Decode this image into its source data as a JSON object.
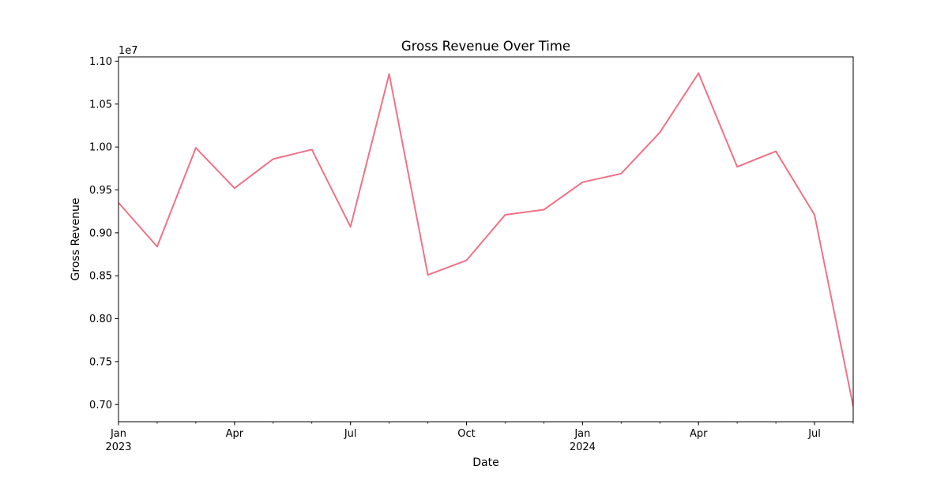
{
  "chart_data": {
    "type": "line",
    "title": "Gross Revenue Over Time",
    "xlabel": "Date",
    "ylabel": "Gross Revenue",
    "y_offset_label": "1e7",
    "ylim": [
      6.8,
      11.05
    ],
    "y_ticks": [
      0.7,
      0.75,
      0.8,
      0.85,
      0.9,
      0.95,
      1.0,
      1.05,
      1.1
    ],
    "y_tick_labels": [
      "0.70",
      "0.75",
      "0.80",
      "0.85",
      "0.90",
      "0.95",
      "1.00",
      "1.05",
      "1.10"
    ],
    "xlim": [
      "2023-01",
      "2024-08"
    ],
    "x_major_ticks": [
      {
        "date": "2023-01",
        "label": "Jan",
        "sublabel": "2023"
      },
      {
        "date": "2023-04",
        "label": "Apr",
        "sublabel": ""
      },
      {
        "date": "2023-07",
        "label": "Jul",
        "sublabel": ""
      },
      {
        "date": "2023-10",
        "label": "Oct",
        "sublabel": ""
      },
      {
        "date": "2024-01",
        "label": "Jan",
        "sublabel": "2024"
      },
      {
        "date": "2024-04",
        "label": "Apr",
        "sublabel": ""
      },
      {
        "date": "2024-07",
        "label": "Jul",
        "sublabel": ""
      }
    ],
    "grid": false,
    "line_color": "#f07288",
    "series": [
      {
        "x": [
          "2023-01",
          "2023-02",
          "2023-03",
          "2023-04",
          "2023-05",
          "2023-06",
          "2023-07",
          "2023-08",
          "2023-09",
          "2023-10",
          "2023-11",
          "2023-12",
          "2024-01",
          "2024-02",
          "2024-03",
          "2024-04",
          "2024-05",
          "2024-06",
          "2024-07",
          "2024-08"
        ],
        "values": [
          9.35,
          8.84,
          9.99,
          9.52,
          9.86,
          9.97,
          9.07,
          10.85,
          8.51,
          8.68,
          9.21,
          9.27,
          9.59,
          9.69,
          10.17,
          10.86,
          9.77,
          9.95,
          9.21,
          6.98
        ]
      }
    ]
  }
}
